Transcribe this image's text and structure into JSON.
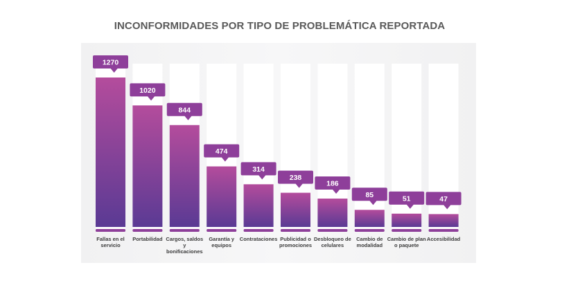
{
  "chart_data": {
    "type": "bar",
    "title": "INCONFORMIDADES POR TIPO DE PROBLEMÁTICA REPORTADA",
    "categories": [
      "Fallas en el servicio",
      "Portabilidad",
      "Cargos, saldos y bonificaciones",
      "Garantía y equipos",
      "Contrataciones",
      "Publicidad o promociones",
      "Desbloqueo de celulares",
      "Cambio de modalidad",
      "Cambio de plan o paquete",
      "Accesibilidad"
    ],
    "values": [
      1270,
      1020,
      844,
      474,
      314,
      238,
      186,
      85,
      51,
      47
    ],
    "ylim": [
      0,
      1450
    ],
    "grid": false,
    "colors": {
      "bar_top": "#b44c9c",
      "bar_bottom": "#5a3a94",
      "callout": "#8e3f9a",
      "callout_text": "#ffffff",
      "column_background": "#ffffff",
      "baseline": "#8e3f9a"
    }
  }
}
